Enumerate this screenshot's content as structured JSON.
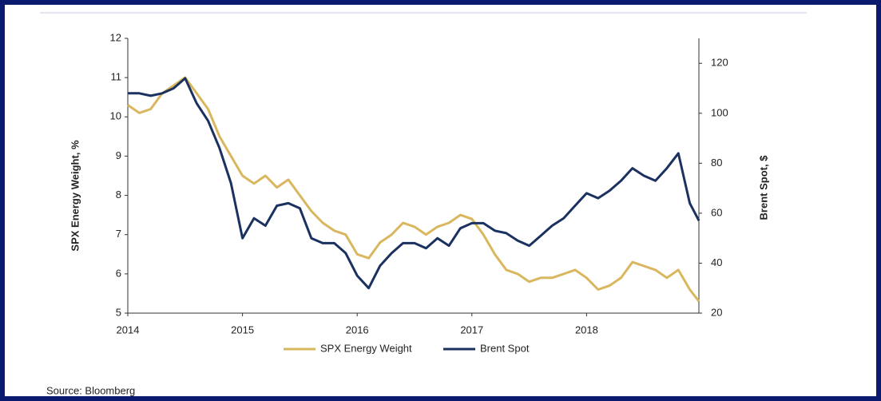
{
  "chart_data": {
    "type": "line",
    "x": [
      2014,
      2014.1,
      2014.2,
      2014.3,
      2014.4,
      2014.5,
      2014.6,
      2014.7,
      2014.8,
      2014.9,
      2015,
      2015.1,
      2015.2,
      2015.3,
      2015.4,
      2015.5,
      2015.6,
      2015.7,
      2015.8,
      2015.9,
      2016,
      2016.1,
      2016.2,
      2016.3,
      2016.4,
      2016.5,
      2016.6,
      2016.7,
      2016.8,
      2016.9,
      2017,
      2017.1,
      2017.2,
      2017.3,
      2017.4,
      2017.5,
      2017.6,
      2017.7,
      2017.8,
      2017.9,
      2018,
      2018.1,
      2018.2,
      2018.3,
      2018.4,
      2018.5,
      2018.6,
      2018.7,
      2018.8,
      2018.9,
      2018.98
    ],
    "series": [
      {
        "name": "SPX Energy Weight",
        "color": "#d9b75e",
        "values": [
          10.3,
          10.1,
          10.2,
          10.6,
          10.8,
          11.0,
          10.6,
          10.2,
          9.5,
          9.0,
          8.5,
          8.3,
          8.5,
          8.2,
          8.4,
          8.0,
          7.6,
          7.3,
          7.1,
          7.0,
          6.5,
          6.4,
          6.8,
          7.0,
          7.3,
          7.2,
          7.0,
          7.2,
          7.3,
          7.5,
          7.4,
          7.0,
          6.5,
          6.1,
          6.0,
          5.8,
          5.9,
          5.9,
          6.0,
          6.1,
          5.9,
          5.6,
          5.7,
          5.9,
          6.3,
          6.2,
          6.1,
          5.9,
          6.1,
          5.6,
          5.3
        ]
      },
      {
        "name": "Brent Spot",
        "color": "#1b3160",
        "axis": "y2",
        "values": [
          108,
          108,
          107,
          108,
          110,
          114,
          104,
          97,
          86,
          72,
          50,
          58,
          55,
          63,
          64,
          62,
          50,
          48,
          48,
          44,
          35,
          30,
          39,
          44,
          48,
          48,
          46,
          50,
          47,
          54,
          56,
          56,
          53,
          52,
          49,
          47,
          51,
          55,
          58,
          63,
          68,
          66,
          69,
          73,
          78,
          75,
          73,
          78,
          84,
          64,
          57
        ]
      }
    ],
    "ylabel": "SPX Energy Weight, %",
    "y2label": "Brent Spot, $",
    "xlim": [
      2014,
      2019
    ],
    "xticks": [
      2014,
      2015,
      2016,
      2017,
      2018
    ],
    "ylim": [
      5,
      12
    ],
    "yticks": [
      5,
      6,
      7,
      8,
      9,
      10,
      11,
      12
    ],
    "y2lim": [
      20,
      130
    ],
    "y2ticks": [
      20,
      40,
      60,
      80,
      100,
      120
    ],
    "source": "Source: Bloomberg"
  }
}
